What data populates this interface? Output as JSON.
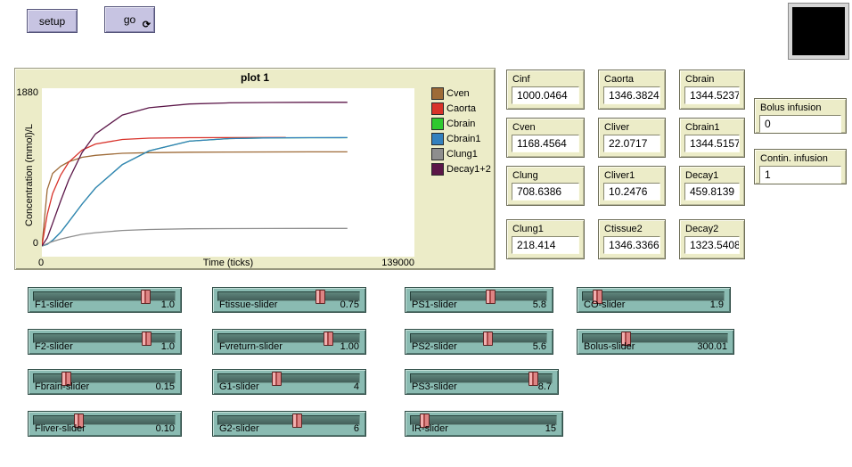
{
  "buttons": {
    "setup_label": "setup",
    "go_label": "go",
    "forever_icon": "⟳"
  },
  "world_view": {
    "background": "#000000"
  },
  "plot": {
    "title": "plot 1",
    "y_axis_label": "Concentration  (mmol)/L",
    "y_max_label": "1880",
    "y_min_label": "0",
    "x_min_label": "0",
    "x_axis_label": "Time (ticks)",
    "x_max_label": "139000"
  },
  "chart_data": {
    "type": "line",
    "title": "plot 1",
    "xlabel": "Time (ticks)",
    "ylabel": "Concentration (mmol)/L",
    "xlim": [
      0,
      139000
    ],
    "ylim": [
      0,
      1880
    ],
    "grid": false,
    "legend_position": "right",
    "series": [
      {
        "name": "Cven",
        "color": "#9E6B38",
        "points": [
          [
            0,
            0
          ],
          [
            2000,
            700
          ],
          [
            4000,
            900
          ],
          [
            7000,
            990
          ],
          [
            10000,
            1045
          ],
          [
            15000,
            1100
          ],
          [
            20000,
            1125
          ],
          [
            30000,
            1150
          ],
          [
            40000,
            1158
          ],
          [
            55000,
            1163
          ],
          [
            70000,
            1166
          ],
          [
            85000,
            1167
          ],
          [
            100000,
            1168
          ],
          [
            114000,
            1168
          ]
        ]
      },
      {
        "name": "Caorta",
        "color": "#D8322A",
        "points": [
          [
            0,
            0
          ],
          [
            2000,
            390
          ],
          [
            4000,
            650
          ],
          [
            7000,
            880
          ],
          [
            10000,
            1040
          ],
          [
            15000,
            1190
          ],
          [
            20000,
            1265
          ],
          [
            30000,
            1322
          ],
          [
            40000,
            1338
          ],
          [
            55000,
            1344
          ],
          [
            70000,
            1345
          ],
          [
            85000,
            1346
          ],
          [
            91000,
            1346
          ]
        ]
      },
      {
        "name": "Cbrain",
        "color": "#2FC92F",
        "points": [
          [
            0,
            0
          ],
          [
            2000,
            20
          ],
          [
            4000,
            70
          ],
          [
            7000,
            170
          ],
          [
            10000,
            300
          ],
          [
            15000,
            520
          ],
          [
            20000,
            720
          ],
          [
            30000,
            1010
          ],
          [
            40000,
            1180
          ],
          [
            55000,
            1300
          ],
          [
            70000,
            1333
          ],
          [
            85000,
            1341
          ],
          [
            100000,
            1344
          ],
          [
            114000,
            1344
          ]
        ]
      },
      {
        "name": "Cbrain1",
        "color": "#3380BE",
        "points": [
          [
            0,
            0
          ],
          [
            2000,
            20
          ],
          [
            4000,
            70
          ],
          [
            7000,
            170
          ],
          [
            10000,
            300
          ],
          [
            15000,
            520
          ],
          [
            20000,
            720
          ],
          [
            30000,
            1010
          ],
          [
            40000,
            1180
          ],
          [
            55000,
            1300
          ],
          [
            70000,
            1333
          ],
          [
            85000,
            1341
          ],
          [
            100000,
            1344
          ],
          [
            114000,
            1345
          ]
        ]
      },
      {
        "name": "Clung1",
        "color": "#8E8E8E",
        "points": [
          [
            0,
            0
          ],
          [
            2000,
            30
          ],
          [
            4000,
            55
          ],
          [
            7000,
            85
          ],
          [
            10000,
            110
          ],
          [
            15000,
            145
          ],
          [
            20000,
            165
          ],
          [
            30000,
            192
          ],
          [
            40000,
            205
          ],
          [
            55000,
            213
          ],
          [
            70000,
            216
          ],
          [
            85000,
            217
          ],
          [
            100000,
            218
          ],
          [
            114000,
            218
          ]
        ]
      },
      {
        "name": "Decay1+2",
        "color": "#5B1648",
        "points": [
          [
            0,
            0
          ],
          [
            2000,
            100
          ],
          [
            4000,
            280
          ],
          [
            7000,
            560
          ],
          [
            10000,
            820
          ],
          [
            15000,
            1160
          ],
          [
            20000,
            1390
          ],
          [
            30000,
            1625
          ],
          [
            40000,
            1715
          ],
          [
            55000,
            1762
          ],
          [
            70000,
            1776
          ],
          [
            85000,
            1781
          ],
          [
            100000,
            1783
          ],
          [
            114000,
            1783
          ]
        ]
      }
    ]
  },
  "monitors": [
    {
      "label": "Cinf",
      "value": "1000.0464"
    },
    {
      "label": "Caorta",
      "value": "1346.3824"
    },
    {
      "label": "Cbrain",
      "value": "1344.5237"
    },
    {
      "label": "Cven",
      "value": "1168.4564"
    },
    {
      "label": "Cliver",
      "value": "22.0717"
    },
    {
      "label": "Cbrain1",
      "value": "1344.5157"
    },
    {
      "label": "Clung",
      "value": "708.6386"
    },
    {
      "label": "Cliver1",
      "value": "10.2476"
    },
    {
      "label": "Decay1",
      "value": "459.8139"
    },
    {
      "label": "Clung1",
      "value": "218.414"
    },
    {
      "label": "Ctissue2",
      "value": "1346.3366"
    },
    {
      "label": "Decay2",
      "value": "1323.5408"
    }
  ],
  "inputs": [
    {
      "label": "Bolus infusion",
      "value": "0"
    },
    {
      "label": "Contin. infusion",
      "value": "1"
    }
  ],
  "sliders": [
    {
      "label": "F1-slider",
      "value": "1.0",
      "fraction": 0.79
    },
    {
      "label": "Ftissue-slider",
      "value": "0.75",
      "fraction": 0.72
    },
    {
      "label": "PS1-slider",
      "value": "5.8",
      "fraction": 0.58
    },
    {
      "label": "CO-slider",
      "value": "1.9",
      "fraction": 0.08
    },
    {
      "label": "F2-slider",
      "value": "1.0",
      "fraction": 0.8
    },
    {
      "label": "Fvreturn-slider",
      "value": "1.00",
      "fraction": 0.78
    },
    {
      "label": "PS2-slider",
      "value": "5.6",
      "fraction": 0.56
    },
    {
      "label": "Bolus-slider",
      "value": "300.01",
      "fraction": 0.28
    },
    {
      "label": "Fbrain-slider",
      "value": "0.15",
      "fraction": 0.21
    },
    {
      "label": "G1-slider",
      "value": "4",
      "fraction": 0.4
    },
    {
      "label": "PS3-slider",
      "value": "8.7",
      "fraction": 0.87
    },
    {
      "label": "Fliver-slider",
      "value": "0.10",
      "fraction": 0.3
    },
    {
      "label": "G2-slider",
      "value": "6",
      "fraction": 0.55
    },
    {
      "label": "IR-slider",
      "value": "15",
      "fraction": 0.07
    }
  ],
  "colors": {
    "widget_beige": "#ECECC8",
    "slider_teal": "#8ABBB2",
    "slider_handle_pink": "#DD8484",
    "button_lavender": "#C7C4E2",
    "plot_background": "#FFFFFF"
  }
}
